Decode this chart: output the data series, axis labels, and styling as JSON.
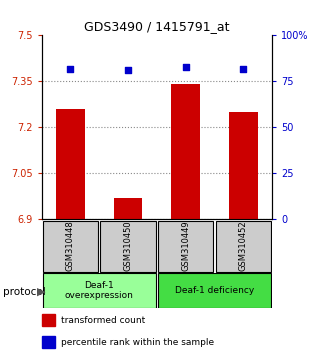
{
  "title": "GDS3490 / 1415791_at",
  "samples": [
    "GSM310448",
    "GSM310450",
    "GSM310449",
    "GSM310452"
  ],
  "bar_values": [
    7.26,
    6.97,
    7.34,
    7.25
  ],
  "percentile_values": [
    82,
    81,
    83,
    82
  ],
  "bar_color": "#cc0000",
  "dot_color": "#0000cc",
  "ylim_left": [
    6.9,
    7.5
  ],
  "ylim_right": [
    0,
    100
  ],
  "yticks_left": [
    6.9,
    7.05,
    7.2,
    7.35,
    7.5
  ],
  "yticks_right": [
    0,
    25,
    50,
    75,
    100
  ],
  "ytick_labels_left": [
    "6.9",
    "7.05",
    "7.2",
    "7.35",
    "7.5"
  ],
  "ytick_labels_right": [
    "0",
    "25",
    "50",
    "75",
    "100%"
  ],
  "left_tick_color": "#cc2200",
  "right_tick_color": "#0000cc",
  "grid_color": "#888888",
  "groups": [
    {
      "label": "Deaf-1\noverexpression",
      "samples": [
        0,
        1
      ],
      "color": "#99ff99"
    },
    {
      "label": "Deaf-1 deficiency",
      "samples": [
        2,
        3
      ],
      "color": "#44dd44"
    }
  ],
  "protocol_label": "protocol",
  "legend_items": [
    {
      "color": "#cc0000",
      "label": "transformed count"
    },
    {
      "color": "#0000cc",
      "label": "percentile rank within the sample"
    }
  ],
  "bg_color": "#ffffff",
  "plot_bg_color": "#ffffff",
  "sample_box_color": "#cccccc",
  "bar_bottom": 6.9
}
